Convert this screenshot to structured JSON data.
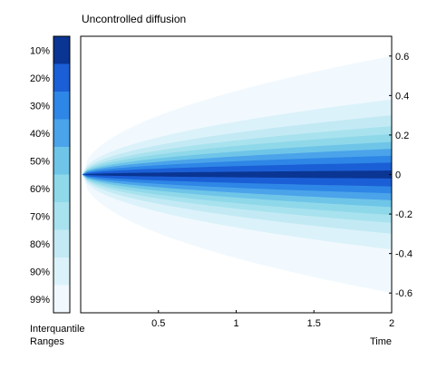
{
  "chart_data": {
    "type": "area",
    "title": "Uncontrolled diffusion",
    "xlabel": "Time",
    "ylabel": "",
    "xlim": [
      0,
      2
    ],
    "ylim": [
      -0.7,
      0.7
    ],
    "x_ticks": [
      0.5,
      1,
      1.5,
      2
    ],
    "x_tick_labels": [
      "0.5",
      "1",
      "1.5",
      "2"
    ],
    "y_ticks": [
      0.6,
      0.4,
      0.2,
      0,
      -0.2,
      -0.4,
      -0.6
    ],
    "y_tick_labels": [
      "0.6",
      "0.4",
      "0.2",
      "0",
      "-0.2",
      "-0.4",
      "-0.6"
    ],
    "y_axis_position": "right",
    "grid": false,
    "legend": {
      "title_line1": "Interquantile",
      "title_line2": "Ranges",
      "labels": [
        "10%",
        "20%",
        "30%",
        "40%",
        "50%",
        "60%",
        "70%",
        "80%",
        "90%",
        "99%"
      ]
    },
    "band_colors": [
      "#0a3593",
      "#1b5fd6",
      "#2e86e6",
      "#4ba3ea",
      "#6ec5e8",
      "#8fd8ea",
      "#a8e2ee",
      "#c3eaf4",
      "#dcf2fa",
      "#f1f9fe"
    ],
    "spread_at_t2": [
      0.02,
      0.06,
      0.095,
      0.13,
      0.165,
      0.205,
      0.245,
      0.3,
      0.38,
      0.6
    ]
  }
}
